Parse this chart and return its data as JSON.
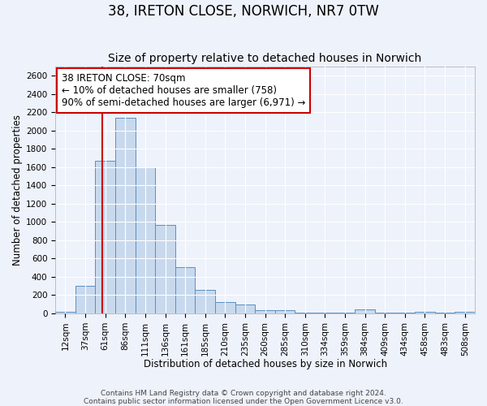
{
  "title": "38, IRETON CLOSE, NORWICH, NR7 0TW",
  "subtitle": "Size of property relative to detached houses in Norwich",
  "xlabel": "Distribution of detached houses by size in Norwich",
  "ylabel": "Number of detached properties",
  "bar_labels": [
    "12sqm",
    "37sqm",
    "61sqm",
    "86sqm",
    "111sqm",
    "136sqm",
    "161sqm",
    "185sqm",
    "210sqm",
    "235sqm",
    "260sqm",
    "285sqm",
    "310sqm",
    "334sqm",
    "359sqm",
    "384sqm",
    "409sqm",
    "434sqm",
    "458sqm",
    "483sqm",
    "508sqm"
  ],
  "bar_values": [
    15,
    300,
    1670,
    2140,
    1600,
    970,
    510,
    255,
    125,
    100,
    35,
    35,
    5,
    5,
    5,
    40,
    5,
    5,
    20,
    5,
    20
  ],
  "bar_color": "#c8d9ee",
  "bar_edge_color": "#5a8fc0",
  "background_color": "#eef2fb",
  "grid_color": "#ffffff",
  "vline_color": "#cc0000",
  "annotation_line1": "38 IRETON CLOSE: 70sqm",
  "annotation_line2": "← 10% of detached houses are smaller (758)",
  "annotation_line3": "90% of semi-detached houses are larger (6,971) →",
  "annotation_box_color": "#ffffff",
  "annotation_box_edge": "#cc0000",
  "ylim": [
    0,
    2700
  ],
  "yticks": [
    0,
    200,
    400,
    600,
    800,
    1000,
    1200,
    1400,
    1600,
    1800,
    2000,
    2200,
    2400,
    2600
  ],
  "footer_line1": "Contains HM Land Registry data © Crown copyright and database right 2024.",
  "footer_line2": "Contains public sector information licensed under the Open Government Licence v3.0.",
  "title_fontsize": 12,
  "subtitle_fontsize": 10,
  "axis_label_fontsize": 8.5,
  "tick_fontsize": 7.5,
  "annotation_fontsize": 8.5,
  "footer_fontsize": 6.5
}
